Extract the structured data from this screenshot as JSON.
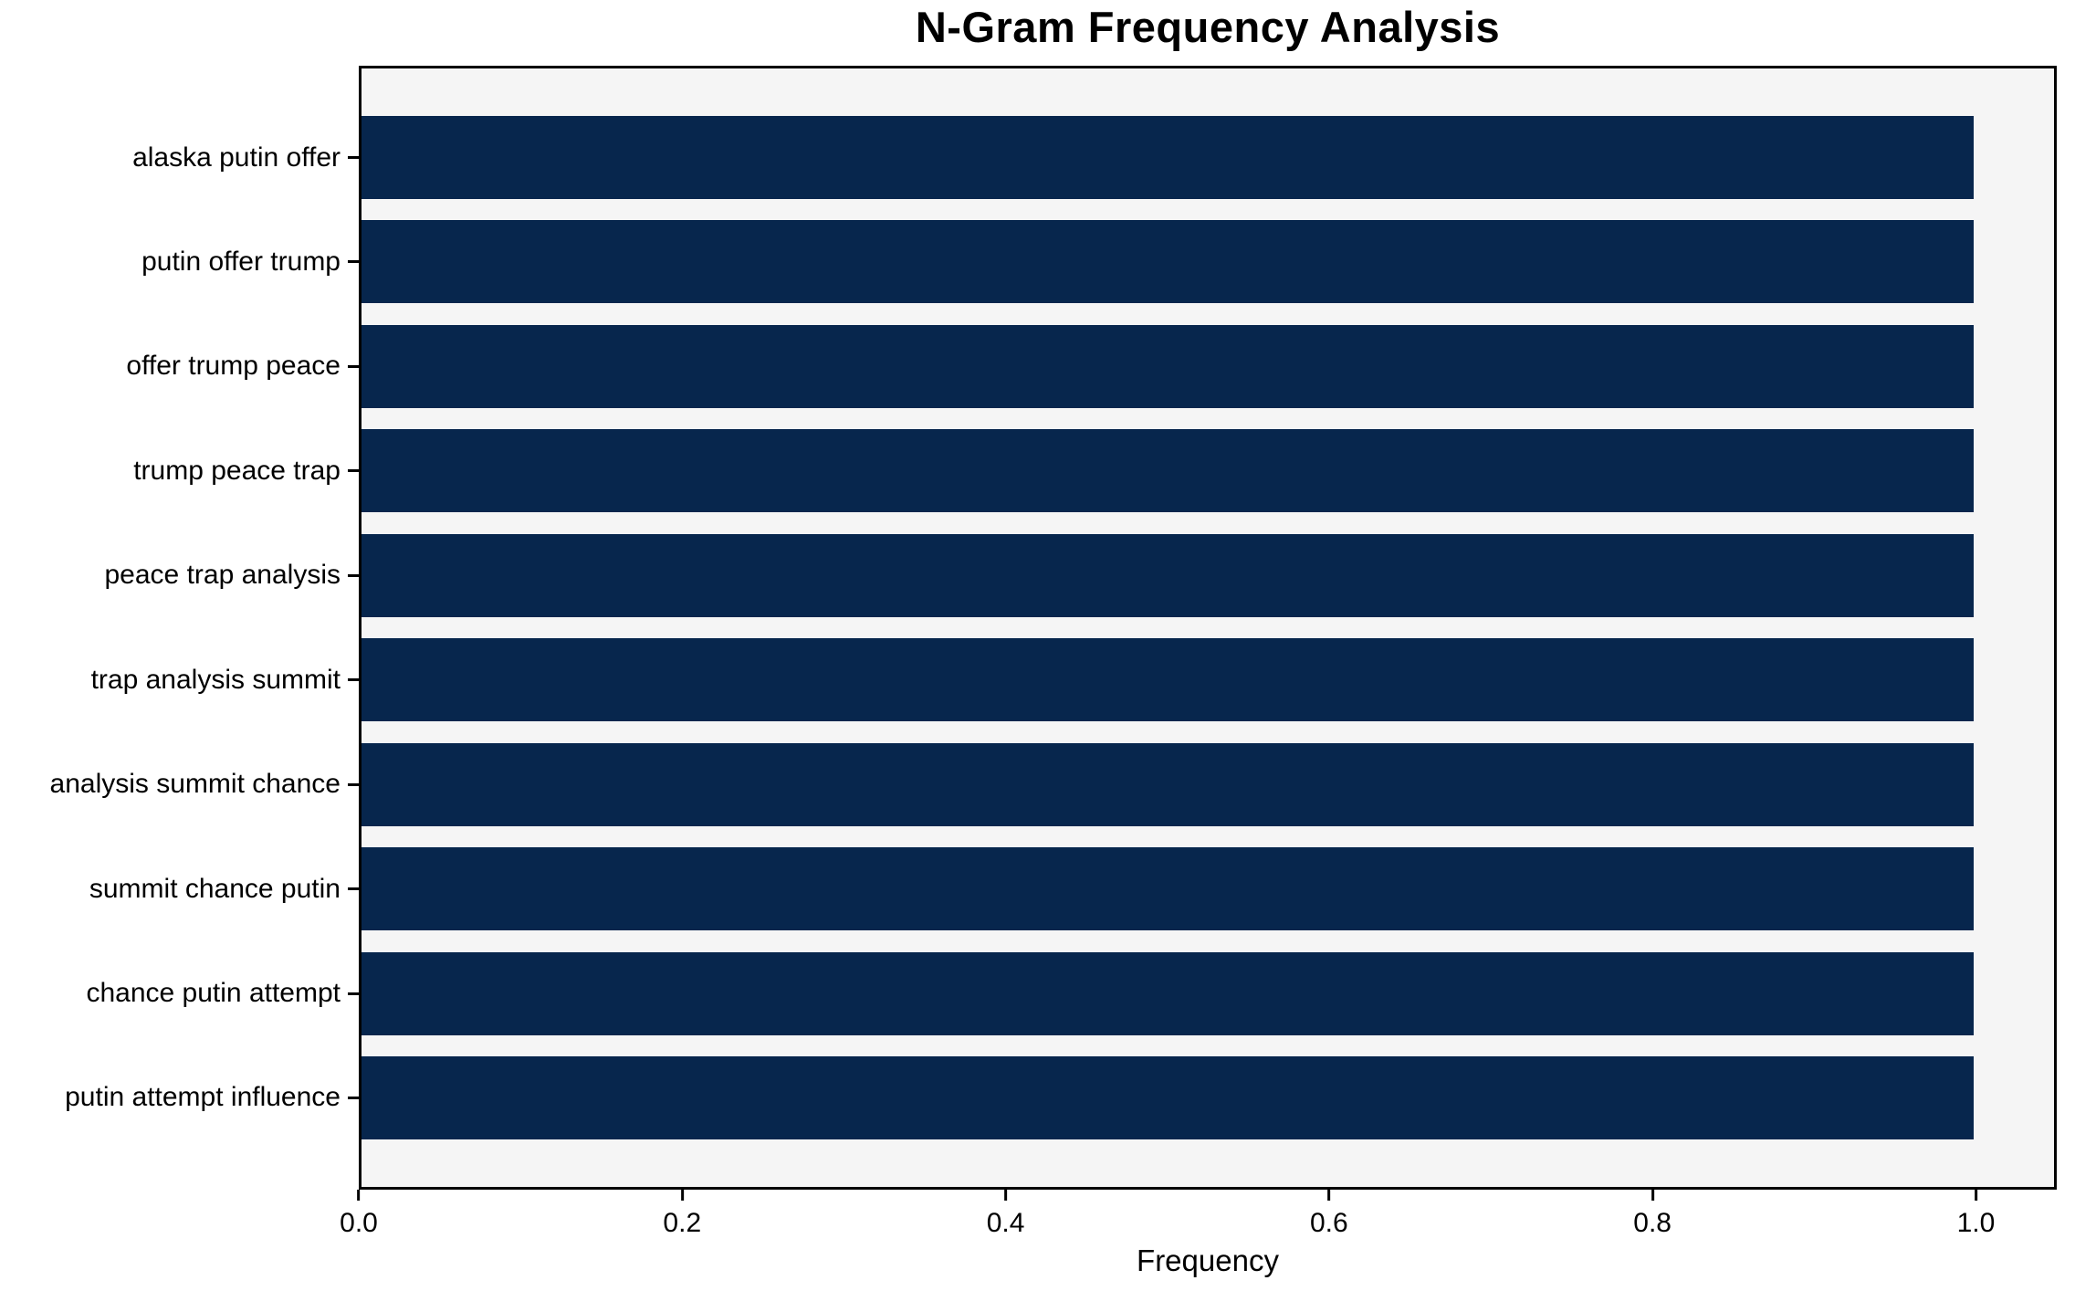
{
  "chart_data": {
    "type": "bar",
    "orientation": "horizontal",
    "title": "N-Gram Frequency Analysis",
    "xlabel": "Frequency",
    "ylabel": "",
    "categories": [
      "alaska putin offer",
      "putin offer trump",
      "offer trump peace",
      "trump peace trap",
      "peace trap analysis",
      "trap analysis summit",
      "analysis summit chance",
      "summit chance putin",
      "chance putin attempt",
      "putin attempt influence"
    ],
    "values": [
      1.0,
      1.0,
      1.0,
      1.0,
      1.0,
      1.0,
      1.0,
      1.0,
      1.0,
      1.0
    ],
    "xticks": [
      "0.0",
      "0.2",
      "0.4",
      "0.6",
      "0.8",
      "1.0"
    ],
    "xlim": [
      0,
      1.05
    ],
    "grid": false,
    "legend": null,
    "bar_color": "#07264d",
    "plot_background": "#f5f5f5",
    "figure_background": "#ffffff",
    "spine_color": "#000000"
  }
}
